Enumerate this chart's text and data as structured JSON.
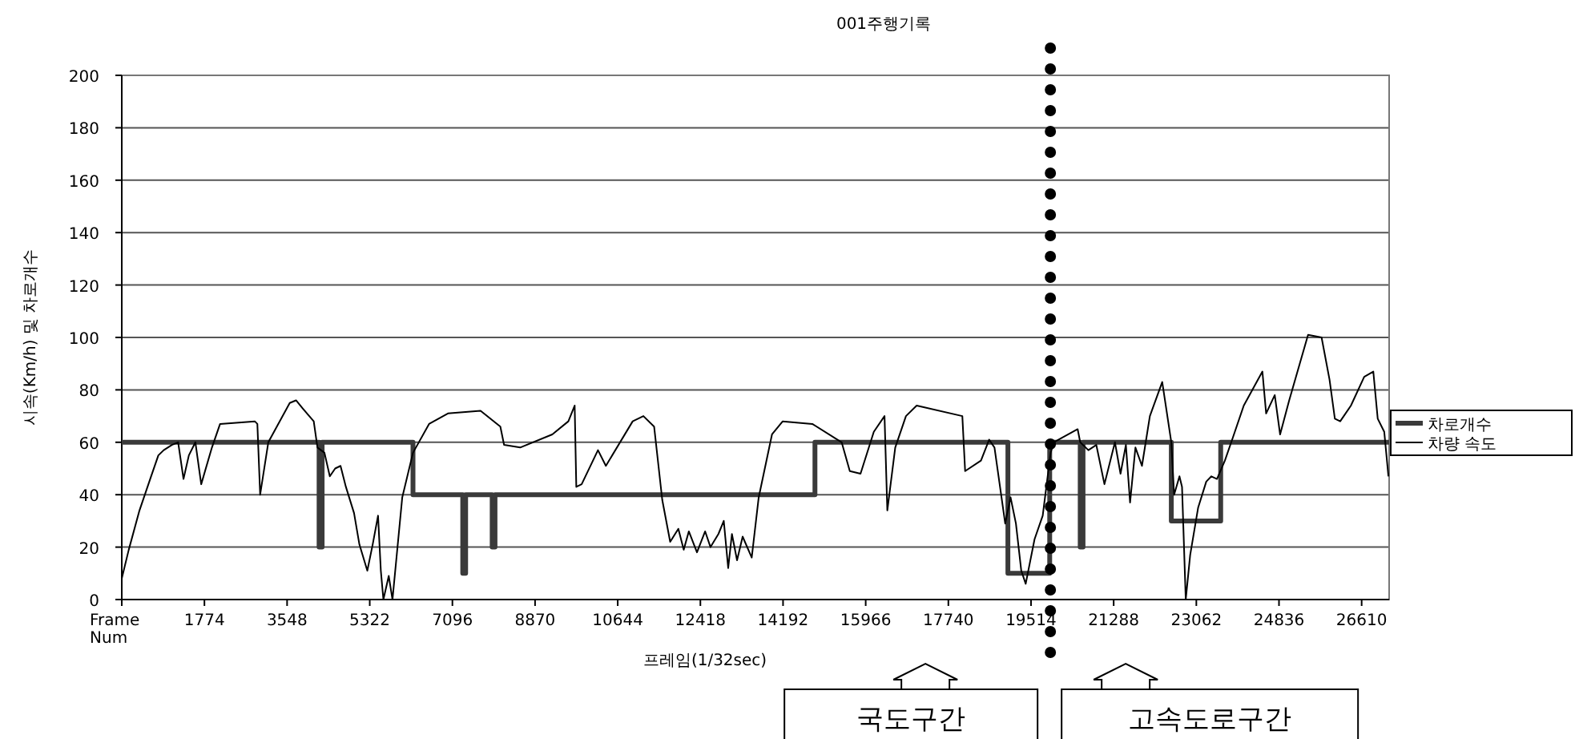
{
  "chart_data": {
    "type": "line",
    "title": "001주행기록",
    "xlabel": "프레임(1/32sec)",
    "ylabel": "시속(Km/h) 및 차로개수",
    "xlim": [
      0,
      27200
    ],
    "ylim": [
      0,
      200
    ],
    "xticks": [
      {
        "value": 0,
        "label": "Frame Num"
      },
      1774,
      3548,
      5322,
      7096,
      8870,
      10644,
      12418,
      14192,
      15966,
      17740,
      19514,
      21288,
      23062,
      24836,
      26610
    ],
    "yticks": [
      0,
      20,
      40,
      60,
      80,
      100,
      120,
      140,
      160,
      180,
      200
    ],
    "grid": "y",
    "legend": "right",
    "series": [
      {
        "name": "차로개수",
        "type": "step",
        "color": "#3a3a3a",
        "x": [
          0,
          4235,
          4300,
          6250,
          7318,
          7380,
          7950,
          8010,
          14877,
          19018,
          19915,
          20570,
          20630,
          22525,
          23585,
          27200
        ],
        "values": [
          60,
          20,
          60,
          40,
          10,
          40,
          20,
          40,
          60,
          10,
          60,
          20,
          60,
          30,
          60,
          60
        ]
      },
      {
        "name": "차량 속도",
        "color": "#000000",
        "x": [
          0,
          150,
          380,
          610,
          785,
          900,
          1075,
          1210,
          1325,
          1440,
          1580,
          1705,
          1935,
          2110,
          2855,
          2910,
          2970,
          3145,
          3605,
          3740,
          3880,
          4120,
          4200,
          4350,
          4465,
          4580,
          4695,
          4810,
          4985,
          5100,
          5270,
          5385,
          5500,
          5560,
          5615,
          5730,
          5810,
          6020,
          6250,
          6595,
          7000,
          7700,
          8125,
          8205,
          8550,
          9240,
          9585,
          9720,
          9755,
          9870,
          10220,
          10390,
          10965,
          11195,
          11425,
          11600,
          11770,
          11945,
          12060,
          12170,
          12345,
          12520,
          12635,
          12805,
          12920,
          13015,
          13095,
          13205,
          13325,
          13520,
          13670,
          13955,
          14185,
          14820,
          15450,
          15625,
          15855,
          16140,
          16370,
          16430,
          16600,
          16830,
          17060,
          18040,
          18100,
          18440,
          18615,
          18730,
          18960,
          19075,
          19190,
          19305,
          19400,
          19590,
          19765,
          19935,
          20000,
          20515,
          20570,
          20745,
          20915,
          21090,
          21315,
          21435,
          21550,
          21640,
          21755,
          21895,
          22065,
          22330,
          22525,
          22585,
          22700,
          22755,
          22835,
          22930,
          23100,
          23275,
          23385,
          23505,
          23675,
          23850,
          24080,
          24480,
          24560,
          24745,
          24860,
          25055,
          25460,
          25750,
          25920,
          26035,
          26150,
          26380,
          26665,
          26860,
          26955,
          27095,
          27185
        ],
        "values": [
          8,
          19,
          34,
          46,
          55,
          57,
          59,
          60,
          46,
          55,
          60,
          44,
          58,
          67,
          68,
          67,
          40,
          60,
          75,
          76,
          73,
          68,
          58,
          56,
          47,
          50,
          51,
          43,
          33,
          21,
          11,
          21,
          32,
          11,
          0,
          9,
          0,
          39,
          56,
          67,
          71,
          72,
          66,
          59,
          58,
          63,
          68,
          74,
          43,
          44,
          57,
          51,
          68,
          70,
          66,
          38,
          22,
          27,
          19,
          26,
          18,
          26,
          20,
          25,
          30,
          12,
          25,
          15,
          24,
          16,
          39,
          63,
          68,
          67,
          60,
          49,
          48,
          64,
          70,
          34,
          58,
          70,
          74,
          70,
          49,
          53,
          61,
          58,
          29,
          39,
          29,
          11,
          6,
          23,
          32,
          56,
          60,
          65,
          60,
          57,
          59,
          44,
          60,
          48,
          59,
          37,
          58,
          51,
          70,
          83,
          60,
          40,
          47,
          43,
          0,
          17,
          35,
          45,
          47,
          46,
          53,
          62,
          74,
          87,
          71,
          78,
          63,
          76,
          101,
          100,
          84,
          69,
          68,
          74,
          85,
          87,
          69,
          64,
          47
        ]
      }
    ],
    "ref_lines": [
      {
        "axis": "x",
        "value": 19930,
        "color": "#000000",
        "line_style": "dotted"
      }
    ],
    "annotations": [
      "국도구간",
      "고속도로구간"
    ]
  }
}
